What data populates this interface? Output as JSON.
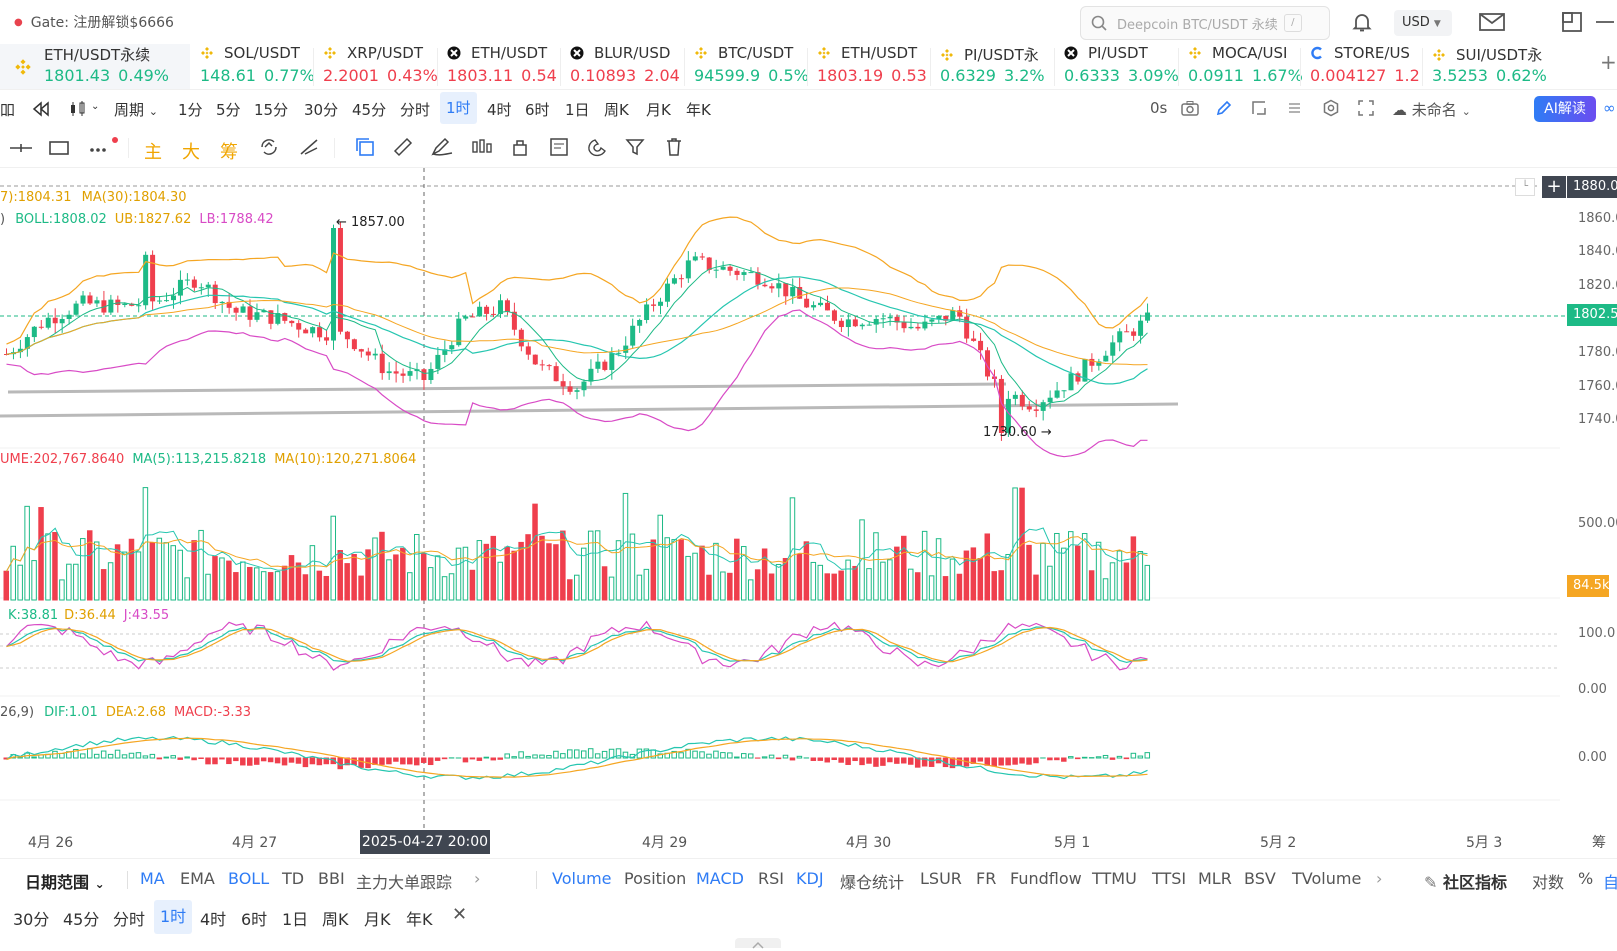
{
  "topbar": {
    "promo": "Gate: 注册解锁$6666",
    "search_placeholder": "Deepcoin BTC/USDT 永续",
    "search_shortcut": "/",
    "currency": "USD"
  },
  "tickers": [
    {
      "name": "ETH/USDT永续",
      "price": "1801.43",
      "change": "0.49%",
      "dir": "up",
      "icon": "binance-diamond-icon"
    },
    {
      "name": "SOL/USDT",
      "price": "148.61",
      "change": "0.77%",
      "dir": "up",
      "icon": "binance-diamond-icon"
    },
    {
      "name": "XRP/USDT",
      "price": "2.2001",
      "change": "0.43%",
      "dir": "dn",
      "icon": "binance-diamond-icon"
    },
    {
      "name": "ETH/USDT",
      "price": "1803.11",
      "change": "0.54",
      "dir": "dn",
      "icon": "okx-icon"
    },
    {
      "name": "BLUR/USD",
      "price": "0.10893",
      "change": "2.04",
      "dir": "dn",
      "icon": "okx-icon"
    },
    {
      "name": "BTC/USDT",
      "price": "94599.9",
      "change": "0.5%",
      "dir": "up",
      "icon": "binance-diamond-icon"
    },
    {
      "name": "ETH/USDT",
      "price": "1803.19",
      "change": "0.53",
      "dir": "dn",
      "icon": "binance-diamond-icon"
    },
    {
      "name": "PI/USDT永",
      "price": "0.6329",
      "change": "3.2%",
      "dir": "up",
      "icon": "binance-diamond-icon"
    },
    {
      "name": "PI/USDT",
      "price": "0.6333",
      "change": "3.09%",
      "dir": "up",
      "icon": "okx-icon"
    },
    {
      "name": "MOCA/USI",
      "price": "0.0911",
      "change": "1.67%",
      "dir": "up",
      "icon": "binance-diamond-icon"
    },
    {
      "name": "STORE/US",
      "price": "0.004127",
      "change": "1.2",
      "dir": "dn",
      "icon": "c-logo-icon"
    },
    {
      "name": "SUI/USDT永",
      "price": "3.5253",
      "change": "0.62%",
      "dir": "up",
      "icon": "binance-diamond-icon"
    }
  ],
  "toolbar": {
    "period_label": "周期",
    "intervals": [
      "1分",
      "5分",
      "15分",
      "30分",
      "45分",
      "分时",
      "1时",
      "4时",
      "6时",
      "1日",
      "周K",
      "月K",
      "年K"
    ],
    "active_interval": "1时",
    "countdown": "0s",
    "layout_name": "未命名",
    "ai_label": "AI解读"
  },
  "indicator_buttons": [
    "主",
    "大",
    "筹"
  ],
  "legend": {
    "ma_line": "7):1804.31  ",
    "ma30": "MA(30):1804.30",
    "boll_prefix": ")",
    "boll": "BOLL:1808.02",
    "ub": "UB:1827.62",
    "lb": "LB:1788.42",
    "volume": "UME:202,767.8640",
    "vol_ma5": "MA(5):113,215.8218",
    "vol_ma10": "MA(10):120,271.8064",
    "k": "K:38.81",
    "d": "D:36.44",
    "j": "J:43.55",
    "macd_prefix": "26,9)",
    "dif": "DIF:1.01",
    "dea": "DEA:2.68",
    "macd": "MACD:-3.33"
  },
  "annotations": {
    "high": "1857.00",
    "low": "1730.60",
    "crosshair_time": "2025-04-27 20:00",
    "crosshair_price": "1880.0",
    "last_price": "1802.5",
    "last_volume": "84.5k"
  },
  "price_axis": [
    "1860.0",
    "1840.0",
    "1820.0",
    "1780.0",
    "1760.0",
    "1740.0"
  ],
  "volume_axis": [
    "500.00"
  ],
  "kdj_axis": [
    "100.0",
    "0.00"
  ],
  "macd_axis": [
    "0.00"
  ],
  "time_axis": [
    "4月 26",
    "4月 27",
    "4月 29",
    "4月 30",
    "5月 1",
    "5月 2",
    "5月 3",
    "筹"
  ],
  "chart_data": {
    "type": "candlestick",
    "title": "ETH/USDT永续",
    "interval": "1时",
    "ylim": [
      1725,
      1885
    ],
    "high": 1857.0,
    "low": 1730.6,
    "last": 1802.5,
    "x": [
      "4月 26",
      "4月 27",
      "4月 29",
      "4月 30",
      "5月 1"
    ],
    "close_approx": [
      1780,
      1800,
      1810,
      1808,
      1812,
      1825,
      1805,
      1802,
      1795,
      1790,
      1770,
      1765,
      1800,
      1808,
      1772,
      1760,
      1780,
      1810,
      1835,
      1830,
      1825,
      1810,
      1800,
      1802,
      1795,
      1805,
      1760,
      1750,
      1765,
      1785,
      1800
    ],
    "support_lines": [
      1760,
      1748
    ]
  },
  "bottom_toolbar": {
    "date_range": "日期范围",
    "main_indicators": [
      "MA",
      "EMA",
      "BOLL",
      "TD",
      "BBI",
      "主力大单跟踪"
    ],
    "active_main": [
      "MA",
      "BOLL"
    ],
    "sub_indicators": [
      "Volume",
      "Position",
      "MACD",
      "RSI",
      "KDJ",
      "爆仓统计",
      "LSUR",
      "FR",
      "Fundflow",
      "TTMU",
      "TTSI",
      "MLR",
      "BSV",
      "TVolume"
    ],
    "active_sub": [
      "Volume",
      "MACD",
      "KDJ"
    ],
    "community": "社区指标",
    "log": "对数",
    "percent": "%",
    "auto": "自",
    "intervals": [
      "30分",
      "45分",
      "分时",
      "1时",
      "4时",
      "6时",
      "1日",
      "周K",
      "月K",
      "年K"
    ],
    "active_interval": "1时"
  },
  "colors": {
    "up": "#1dba86",
    "down": "#ef3f4d",
    "accent": "#2f7cf5",
    "ma_orange": "#f5a623",
    "boll_pink": "#d84bc6",
    "teal": "#26c6b0"
  }
}
